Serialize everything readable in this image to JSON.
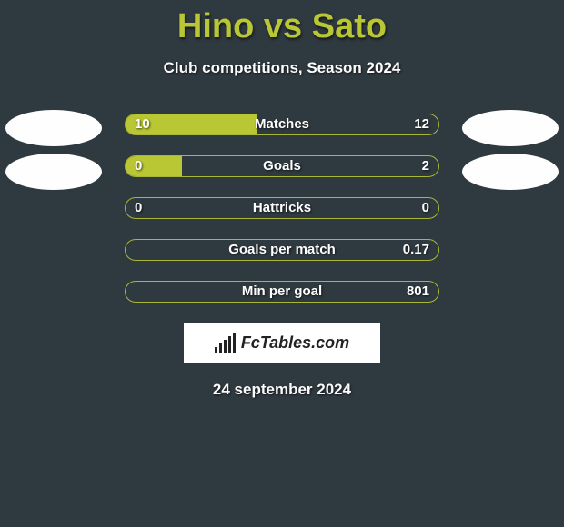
{
  "title": "Hino vs Sato",
  "subtitle": "Club competitions, Season 2024",
  "date": "24 september 2024",
  "badge": {
    "text": "FcTables.com"
  },
  "colors": {
    "background": "#2f3a40",
    "accent": "#b9c735",
    "text": "#ffffff",
    "avatar": "#fefefe",
    "badge_bg": "#ffffff",
    "badge_text": "#222222"
  },
  "bars": [
    {
      "label": "Matches",
      "left": "10",
      "right": "12",
      "left_pct": 42,
      "right_pct": 0
    },
    {
      "label": "Goals",
      "left": "0",
      "right": "2",
      "left_pct": 18,
      "right_pct": 0
    },
    {
      "label": "Hattricks",
      "left": "0",
      "right": "0",
      "left_pct": 0,
      "right_pct": 0
    },
    {
      "label": "Goals per match",
      "left": "",
      "right": "0.17",
      "left_pct": 0,
      "right_pct": 0
    },
    {
      "label": "Min per goal",
      "left": "",
      "right": "801",
      "left_pct": 0,
      "right_pct": 0
    }
  ]
}
